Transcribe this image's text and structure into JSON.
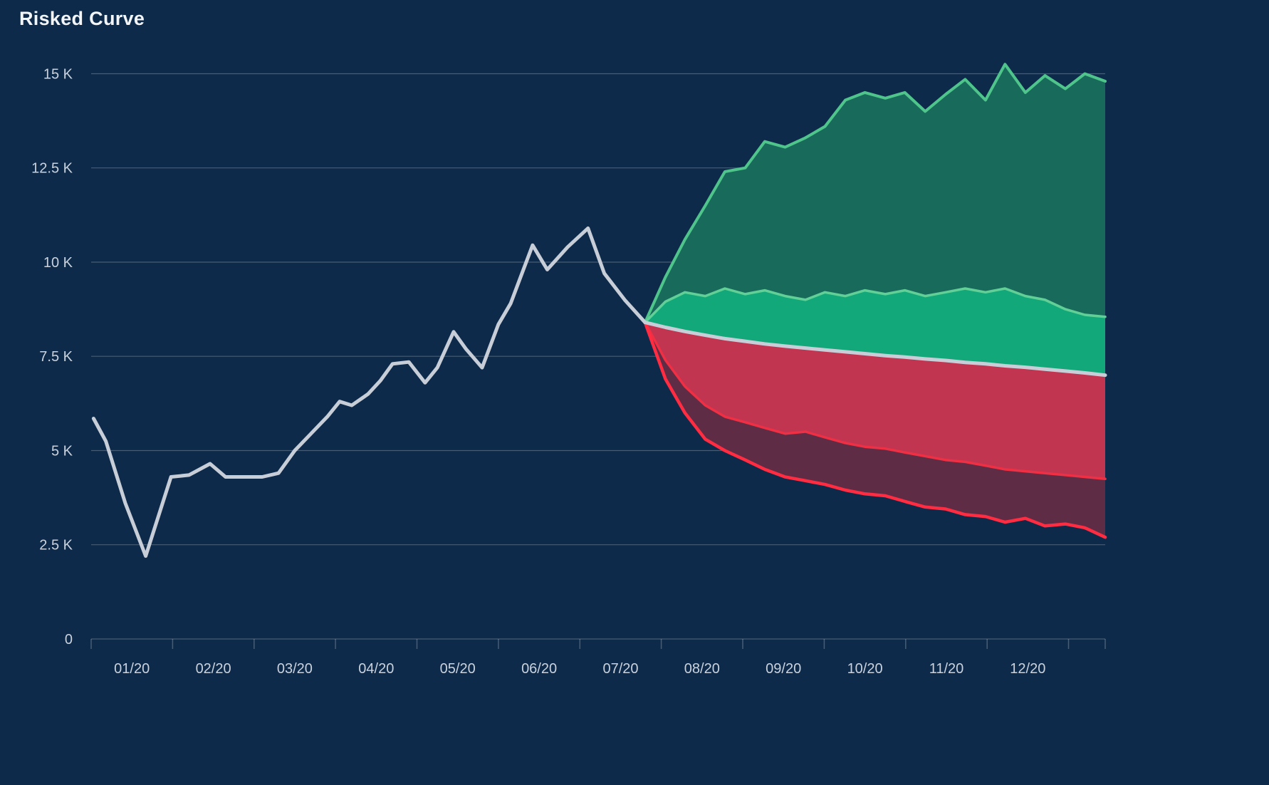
{
  "header": {
    "title": "Risked Curve"
  },
  "chart_data": {
    "type": "area",
    "variant": "fan_chart_history_plus_forecast_bands",
    "title": "Risked Curve",
    "unit": "K (thousands)",
    "grid": "horizontal",
    "legend_position": "none",
    "xlim_months": [
      0,
      12.45
    ],
    "ylim_k": [
      0,
      15.5
    ],
    "x_tick_labels": [
      "01/20",
      "02/20",
      "03/20",
      "04/20",
      "05/20",
      "06/20",
      "07/20",
      "08/20",
      "09/20",
      "10/20",
      "11/20",
      "12/20"
    ],
    "y_tick_values_k": [
      0,
      2.5,
      5,
      7.5,
      10,
      12.5,
      15
    ],
    "y_tick_labels": [
      "0",
      "2.5 K",
      "5 K",
      "7.5 K",
      "10 K",
      "12.5 K",
      "15 K"
    ],
    "colors": {
      "background": "#0e2a4a",
      "grid": "rgba(255,255,255,0.24)",
      "axis_text": "#c9d2dd",
      "title_text": "#f2f5f9",
      "historical_line": "#c7ced8",
      "median_line": "#c7ced8",
      "band_upper_outer_fill": "#186a5b",
      "band_upper_outer_edge": "#4fc58c",
      "band_upper_inner_fill": "#12a87a",
      "band_upper_inner_edge": "#62cf97",
      "band_lower_inner_fill": "#c13551",
      "band_lower_inner_edge": "#ef2f44",
      "band_lower_outer_fill": "#5e2c44",
      "band_lower_outer_edge": "#ff2c42"
    },
    "historical": {
      "name": "historical-actuals",
      "x_months": [
        0.03,
        0.18,
        0.42,
        0.67,
        0.98,
        1.2,
        1.46,
        1.65,
        1.85,
        2.1,
        2.3,
        2.5,
        2.7,
        2.9,
        3.05,
        3.2,
        3.4,
        3.55,
        3.7,
        3.9,
        4.1,
        4.25,
        4.45,
        4.6,
        4.8,
        5.0,
        5.15,
        5.42,
        5.6,
        5.85,
        6.1,
        6.3,
        6.55,
        6.8
      ],
      "values_k": [
        5.85,
        5.25,
        3.6,
        2.2,
        4.3,
        4.35,
        4.65,
        4.3,
        4.3,
        4.3,
        4.4,
        5.0,
        5.45,
        5.9,
        6.3,
        6.2,
        6.5,
        6.85,
        7.3,
        7.35,
        6.8,
        7.2,
        8.15,
        7.7,
        7.2,
        8.35,
        8.9,
        10.45,
        9.8,
        10.4,
        10.9,
        9.7,
        9.0,
        8.4
      ]
    },
    "forecast": {
      "name": "risked-forecast-bands",
      "x_months": [
        6.8,
        7.05,
        7.29,
        7.54,
        7.78,
        8.03,
        8.27,
        8.52,
        8.77,
        9.01,
        9.26,
        9.5,
        9.75,
        9.99,
        10.24,
        10.49,
        10.73,
        10.98,
        11.22,
        11.47,
        11.71,
        11.96,
        12.2,
        12.45
      ],
      "median_k": [
        8.4,
        8.27,
        8.16,
        8.06,
        7.97,
        7.9,
        7.83,
        7.77,
        7.72,
        7.67,
        7.62,
        7.57,
        7.52,
        7.48,
        7.43,
        7.39,
        7.34,
        7.3,
        7.25,
        7.21,
        7.16,
        7.11,
        7.06,
        7.0
      ],
      "upper_outer_k": [
        8.4,
        9.6,
        10.6,
        11.5,
        12.4,
        12.5,
        13.2,
        13.05,
        13.3,
        13.6,
        14.3,
        14.5,
        14.35,
        14.5,
        14.0,
        14.45,
        14.85,
        14.3,
        15.25,
        14.5,
        14.95,
        14.6,
        15.0,
        14.8
      ],
      "upper_inner_k": [
        8.4,
        8.95,
        9.2,
        9.1,
        9.3,
        9.15,
        9.25,
        9.1,
        9.0,
        9.2,
        9.1,
        9.25,
        9.15,
        9.25,
        9.1,
        9.2,
        9.3,
        9.2,
        9.3,
        9.1,
        9.0,
        8.75,
        8.6,
        8.55
      ],
      "lower_inner_k": [
        8.4,
        7.4,
        6.7,
        6.2,
        5.9,
        5.75,
        5.6,
        5.45,
        5.5,
        5.35,
        5.2,
        5.1,
        5.05,
        4.95,
        4.85,
        4.75,
        4.7,
        4.6,
        4.5,
        4.45,
        4.4,
        4.35,
        4.3,
        4.25
      ],
      "lower_outer_k": [
        8.4,
        6.9,
        6.0,
        5.3,
        5.0,
        4.75,
        4.5,
        4.3,
        4.2,
        4.1,
        3.95,
        3.85,
        3.8,
        3.65,
        3.5,
        3.45,
        3.3,
        3.25,
        3.1,
        3.2,
        3.0,
        3.05,
        2.95,
        2.7
      ]
    }
  }
}
